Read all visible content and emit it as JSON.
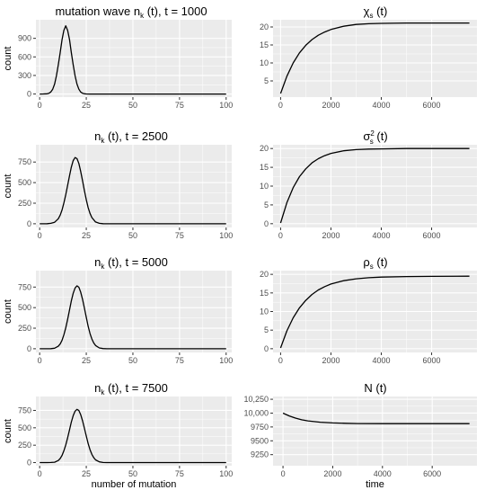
{
  "chart_data": [
    {
      "type": "line",
      "title": "mutation wave n_k (t), t = 1000",
      "title_parts": {
        "pre": "mutation wave n",
        "sub": "k",
        "post": " (t), t = 1000"
      },
      "xlabel": "",
      "ylabel": "count",
      "xlim": [
        -2,
        103
      ],
      "ylim": [
        -50,
        1200
      ],
      "xticks": [
        0,
        25,
        50,
        75,
        100
      ],
      "xtick_labels": [
        "0",
        "25",
        "50",
        "75",
        "100"
      ],
      "yticks": [
        0,
        300,
        600,
        900
      ],
      "ytick_labels": [
        "0",
        "300",
        "600",
        "900"
      ],
      "grid": true,
      "x": [
        0,
        2,
        4,
        5,
        6,
        7,
        8,
        9,
        10,
        11,
        12,
        13,
        14,
        15,
        16,
        17,
        18,
        19,
        20,
        21,
        22,
        23,
        24,
        25,
        27,
        30,
        40,
        50,
        60,
        70,
        80,
        90,
        100
      ],
      "values": [
        0,
        1,
        4,
        12,
        33,
        78,
        161,
        293,
        472,
        669,
        880,
        1030,
        1103,
        1030,
        880,
        669,
        472,
        293,
        161,
        78,
        33,
        12,
        4,
        1,
        0,
        0,
        0,
        0,
        0,
        0,
        0,
        0,
        0
      ]
    },
    {
      "type": "line",
      "title": "χs (t)",
      "title_parts": {
        "pre": "χ",
        "sub": "s",
        "post": " (t)"
      },
      "xlabel": "",
      "ylabel": "",
      "xlim": [
        -300,
        7800
      ],
      "ylim": [
        0.5,
        22
      ],
      "xticks": [
        0,
        2000,
        4000,
        6000
      ],
      "xtick_labels": [
        "0",
        "2000",
        "4000",
        "6000"
      ],
      "yticks": [
        5,
        10,
        15,
        20
      ],
      "ytick_labels": [
        "5",
        "10",
        "15",
        "20"
      ],
      "grid": true,
      "x": [
        0,
        250,
        500,
        750,
        1000,
        1250,
        1500,
        1750,
        2000,
        2500,
        3000,
        3500,
        4000,
        5000,
        6000,
        7500
      ],
      "values": [
        1.5,
        6.3,
        10.0,
        12.8,
        14.9,
        16.5,
        17.7,
        18.6,
        19.3,
        20.2,
        20.7,
        20.9,
        21.0,
        21.1,
        21.1,
        21.1
      ]
    },
    {
      "type": "line",
      "title": "n_k (t), t = 2500",
      "title_parts": {
        "pre": "n",
        "sub": "k",
        "post": " (t), t = 2500"
      },
      "xlabel": "",
      "ylabel": "count",
      "xlim": [
        -2,
        103
      ],
      "ylim": [
        -45,
        960
      ],
      "xticks": [
        0,
        25,
        50,
        75,
        100
      ],
      "xtick_labels": [
        "0",
        "25",
        "50",
        "75",
        "100"
      ],
      "yticks": [
        0,
        250,
        500,
        750
      ],
      "ytick_labels": [
        "0",
        "250",
        "500",
        "750"
      ],
      "grid": true,
      "x": [
        0,
        4,
        6,
        8,
        10,
        11,
        12,
        13,
        14,
        15,
        16,
        17,
        18,
        19,
        20,
        21,
        22,
        23,
        24,
        25,
        26,
        27,
        28,
        30,
        32,
        34,
        36,
        40,
        50,
        60,
        70,
        80,
        90,
        100
      ],
      "values": [
        0,
        1,
        5,
        18,
        61,
        105,
        168,
        252,
        353,
        467,
        583,
        688,
        768,
        805,
        792,
        733,
        638,
        523,
        402,
        290,
        197,
        126,
        75,
        22,
        5,
        1,
        0,
        0,
        0,
        0,
        0,
        0,
        0,
        0
      ]
    },
    {
      "type": "line",
      "title": "σs2 (t)",
      "title_parts": {
        "pre": "σ",
        "sub": "s",
        "sup": "2",
        "post": " (t)"
      },
      "xlabel": "",
      "ylabel": "",
      "xlim": [
        -300,
        7800
      ],
      "ylim": [
        -1,
        21
      ],
      "xticks": [
        0,
        2000,
        4000,
        6000
      ],
      "xtick_labels": [
        "0",
        "2000",
        "4000",
        "6000"
      ],
      "yticks": [
        0,
        5,
        10,
        15,
        20
      ],
      "ytick_labels": [
        "0",
        "5",
        "10",
        "15",
        "20"
      ],
      "grid": true,
      "x": [
        0,
        250,
        500,
        750,
        1000,
        1250,
        1500,
        1750,
        2000,
        2500,
        3000,
        3500,
        4000,
        5000,
        6000,
        7500
      ],
      "values": [
        0.2,
        5.6,
        9.6,
        12.5,
        14.6,
        16.2,
        17.3,
        18.1,
        18.7,
        19.4,
        19.7,
        19.85,
        19.9,
        20.0,
        20.0,
        20.0
      ]
    },
    {
      "type": "line",
      "title": "n_k (t), t = 5000",
      "title_parts": {
        "pre": "n",
        "sub": "k",
        "post": " (t), t = 5000"
      },
      "xlabel": "",
      "ylabel": "count",
      "xlim": [
        -2,
        103
      ],
      "ylim": [
        -45,
        950
      ],
      "xticks": [
        0,
        25,
        50,
        75,
        100
      ],
      "xtick_labels": [
        "0",
        "25",
        "50",
        "75",
        "100"
      ],
      "yticks": [
        0,
        250,
        500,
        750
      ],
      "ytick_labels": [
        "0",
        "250",
        "500",
        "750"
      ],
      "grid": true,
      "x": [
        0,
        4,
        6,
        8,
        10,
        11,
        12,
        13,
        14,
        15,
        16,
        17,
        18,
        19,
        20,
        21,
        22,
        23,
        24,
        25,
        26,
        27,
        28,
        29,
        30,
        32,
        34,
        36,
        40,
        50,
        60,
        70,
        80,
        90,
        100
      ],
      "values": [
        0,
        0,
        1,
        6,
        30,
        58,
        104,
        169,
        254,
        357,
        471,
        582,
        675,
        739,
        765,
        748,
        690,
        601,
        493,
        380,
        275,
        186,
        118,
        70,
        39,
        10,
        2,
        0,
        0,
        0,
        0,
        0,
        0,
        0,
        0
      ]
    },
    {
      "type": "line",
      "title": "ρs (t)",
      "title_parts": {
        "pre": "ρ",
        "sub": "s",
        "post": " (t)"
      },
      "xlabel": "",
      "ylabel": "",
      "xlim": [
        -300,
        7800
      ],
      "ylim": [
        -1,
        21
      ],
      "xticks": [
        0,
        2000,
        4000,
        6000
      ],
      "xtick_labels": [
        "0",
        "2000",
        "4000",
        "6000"
      ],
      "yticks": [
        0,
        5,
        10,
        15,
        20
      ],
      "ytick_labels": [
        "0",
        "5",
        "10",
        "15",
        "20"
      ],
      "grid": true,
      "x": [
        0,
        250,
        500,
        750,
        1000,
        1250,
        1500,
        1750,
        2000,
        2500,
        3000,
        3500,
        4000,
        5000,
        6000,
        7500
      ],
      "values": [
        0.2,
        4.8,
        8.3,
        11.0,
        13.0,
        14.6,
        15.8,
        16.7,
        17.4,
        18.3,
        18.8,
        19.1,
        19.25,
        19.4,
        19.45,
        19.5
      ]
    },
    {
      "type": "line",
      "title": "n_k (t), t = 7500",
      "title_parts": {
        "pre": "n",
        "sub": "k",
        "post": " (t), t = 7500"
      },
      "xlabel": "number of mutation",
      "ylabel": "count",
      "xlim": [
        -2,
        103
      ],
      "ylim": [
        -45,
        950
      ],
      "xticks": [
        0,
        25,
        50,
        75,
        100
      ],
      "xtick_labels": [
        "0",
        "25",
        "50",
        "75",
        "100"
      ],
      "yticks": [
        0,
        250,
        500,
        750
      ],
      "ytick_labels": [
        "0",
        "250",
        "500",
        "750"
      ],
      "grid": true,
      "x": [
        0,
        4,
        6,
        8,
        10,
        11,
        12,
        13,
        14,
        15,
        16,
        17,
        18,
        19,
        20,
        21,
        22,
        23,
        24,
        25,
        26,
        27,
        28,
        29,
        30,
        32,
        34,
        36,
        40,
        50,
        60,
        70,
        80,
        90,
        100
      ],
      "values": [
        0,
        0,
        1,
        6,
        30,
        58,
        104,
        169,
        254,
        357,
        471,
        582,
        675,
        739,
        765,
        748,
        690,
        601,
        493,
        380,
        275,
        186,
        118,
        70,
        39,
        10,
        2,
        0,
        0,
        0,
        0,
        0,
        0,
        0,
        0
      ]
    },
    {
      "type": "line",
      "title": "N (t)",
      "title_parts": {
        "pre": "N (t)"
      },
      "xlabel": "time",
      "ylabel": "",
      "xlim": [
        -400,
        7800
      ],
      "ylim": [
        9050,
        10300
      ],
      "xticks": [
        0,
        2000,
        4000,
        6000
      ],
      "xtick_labels": [
        "0",
        "2000",
        "4000",
        "6000"
      ],
      "yticks": [
        9250,
        9500,
        9750,
        10000,
        10250
      ],
      "ytick_labels": [
        "9250",
        "9500",
        "9750",
        "10,000",
        "10,250"
      ],
      "grid": true,
      "x": [
        0,
        250,
        500,
        750,
        1000,
        1500,
        2000,
        2500,
        3000,
        4000,
        5000,
        6000,
        7500
      ],
      "values": [
        10000,
        9950,
        9910,
        9880,
        9860,
        9835,
        9822,
        9816,
        9812,
        9810,
        9810,
        9810,
        9810
      ]
    }
  ]
}
